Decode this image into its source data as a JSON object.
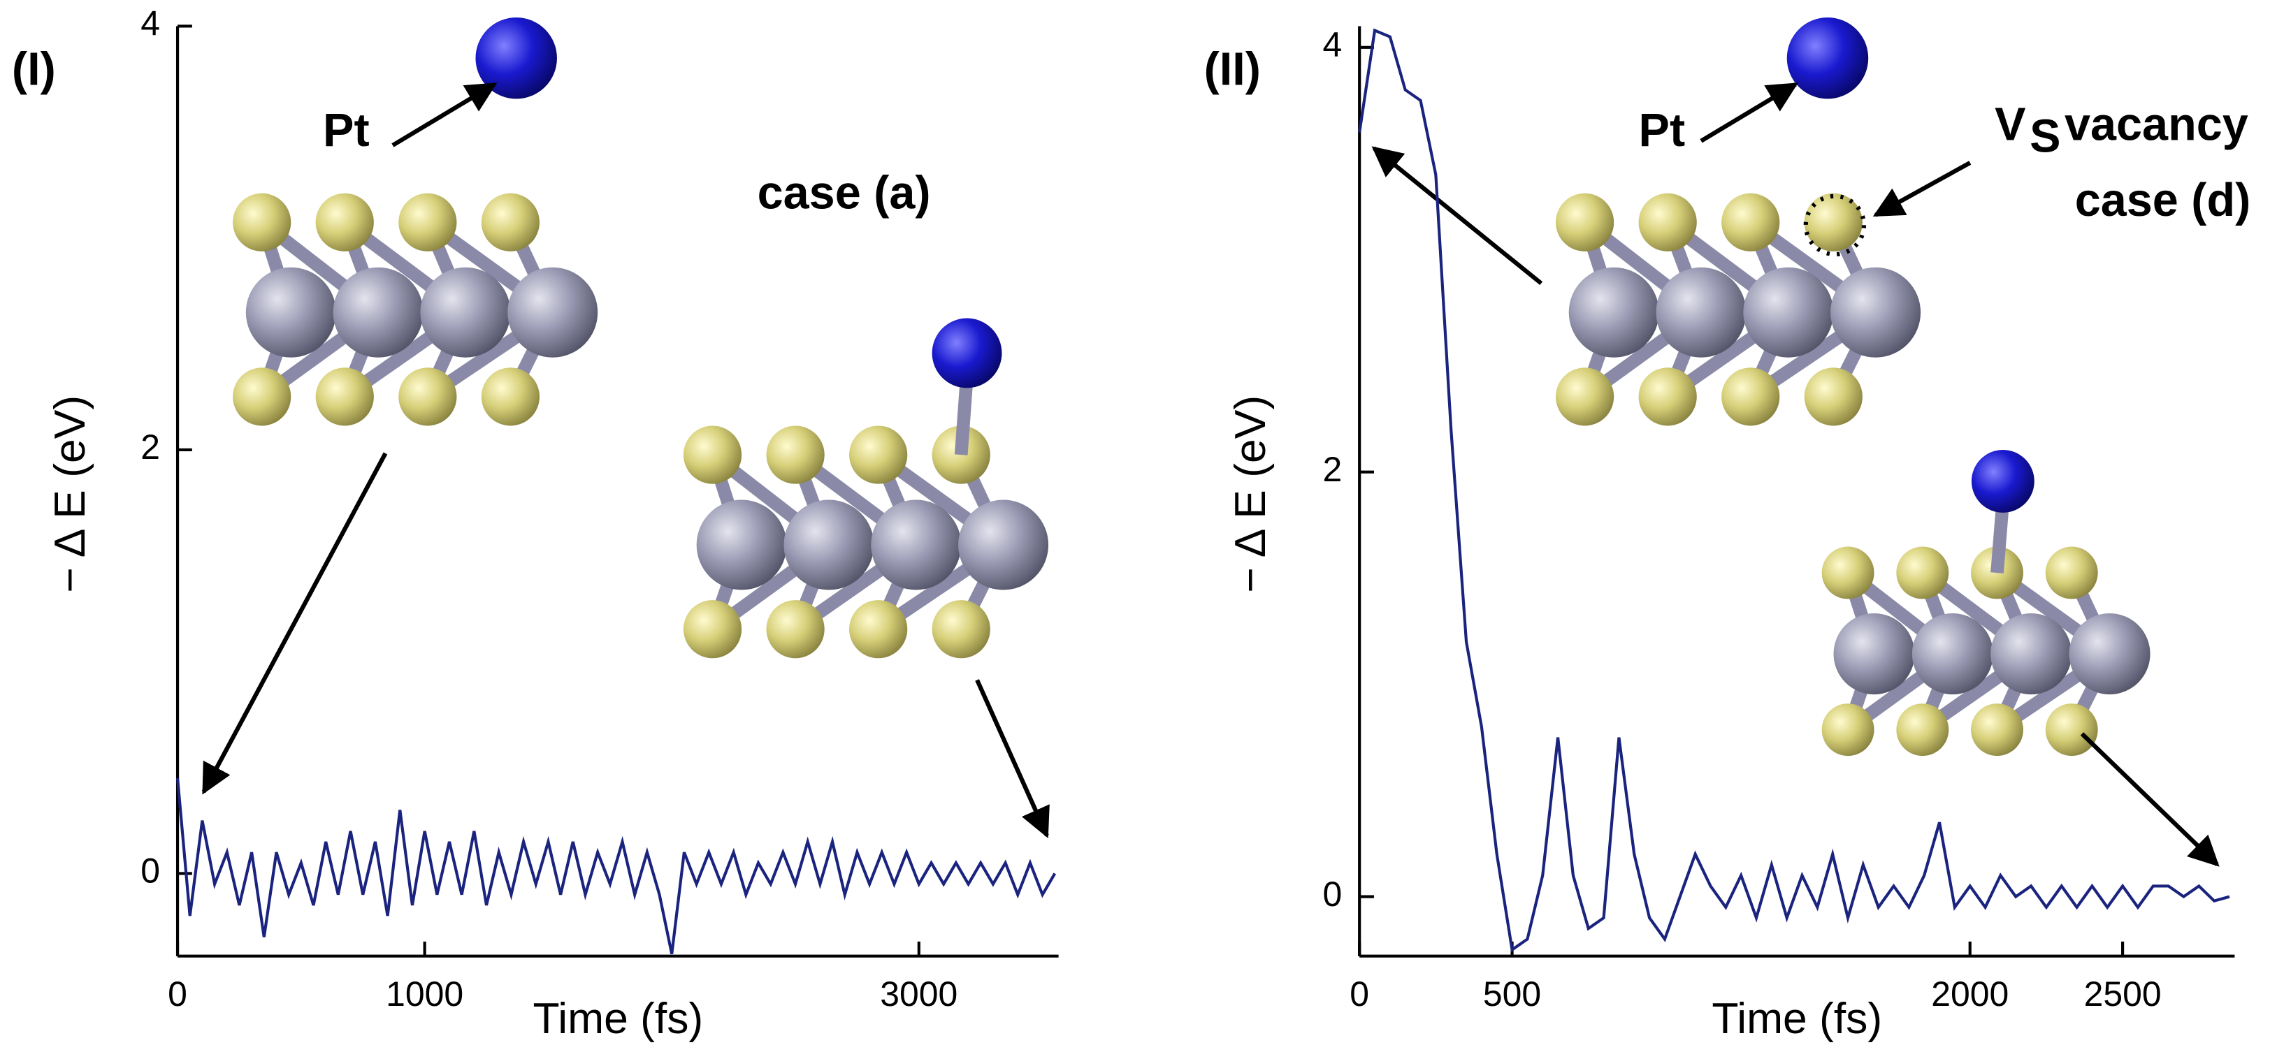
{
  "chart_data": [
    {
      "type": "line",
      "label": "(I)",
      "ylabel": "− Δ E (eV)",
      "xlabel": "Time (fs)",
      "annotations": [
        "Pt",
        "case (a)"
      ],
      "xlim": [
        0,
        3565
      ],
      "ylim": [
        -0.39,
        4
      ],
      "xticks": [
        0,
        1000,
        3000
      ],
      "yticks": [
        0,
        2,
        4
      ],
      "series": [
        {
          "color": "#1a237e",
          "x": [
            0,
            50,
            100,
            150,
            200,
            250,
            300,
            350,
            400,
            450,
            500,
            550,
            600,
            650,
            700,
            750,
            800,
            850,
            900,
            950,
            1000,
            1050,
            1100,
            1150,
            1200,
            1250,
            1300,
            1350,
            1400,
            1450,
            1500,
            1550,
            1600,
            1650,
            1700,
            1750,
            1800,
            1850,
            1900,
            1950,
            2000,
            2050,
            2100,
            2150,
            2200,
            2250,
            2300,
            2350,
            2400,
            2450,
            2500,
            2550,
            2600,
            2650,
            2700,
            2750,
            2800,
            2850,
            2900,
            2950,
            3000,
            3050,
            3100,
            3150,
            3200,
            3250,
            3300,
            3350,
            3400,
            3450,
            3500,
            3550
          ],
          "values": [
            0.45,
            -0.2,
            0.25,
            -0.05,
            0.1,
            -0.15,
            0.1,
            -0.3,
            0.1,
            -0.1,
            0.05,
            -0.15,
            0.15,
            -0.1,
            0.2,
            -0.1,
            0.15,
            -0.2,
            0.3,
            -0.15,
            0.2,
            -0.1,
            0.15,
            -0.1,
            0.2,
            -0.15,
            0.1,
            -0.1,
            0.15,
            -0.05,
            0.15,
            -0.1,
            0.15,
            -0.1,
            0.1,
            -0.05,
            0.15,
            -0.1,
            0.1,
            -0.1,
            -0.38,
            0.1,
            -0.05,
            0.1,
            -0.05,
            0.1,
            -0.1,
            0.05,
            -0.05,
            0.1,
            -0.05,
            0.15,
            -0.05,
            0.15,
            -0.1,
            0.1,
            -0.05,
            0.1,
            -0.05,
            0.1,
            -0.05,
            0.05,
            -0.05,
            0.05,
            -0.05,
            0.05,
            -0.05,
            0.05,
            -0.1,
            0.05,
            -0.1,
            0.0
          ]
        }
      ]
    },
    {
      "type": "line",
      "label": "(II)",
      "ylabel": "− Δ E (eV)",
      "xlabel": "Time (fs)",
      "annotations": [
        "Pt",
        "V",
        "S",
        "vacancy",
        "case (d)"
      ],
      "xlim": [
        0,
        2867
      ],
      "ylim": [
        -0.28,
        4.1
      ],
      "xticks": [
        0,
        500,
        2000,
        2500
      ],
      "yticks": [
        0,
        2,
        4
      ],
      "series": [
        {
          "color": "#1a237e",
          "x": [
            0,
            50,
            100,
            150,
            200,
            250,
            300,
            350,
            400,
            450,
            500,
            550,
            600,
            650,
            700,
            750,
            800,
            850,
            900,
            950,
            1000,
            1050,
            1100,
            1150,
            1200,
            1250,
            1300,
            1350,
            1400,
            1450,
            1500,
            1550,
            1600,
            1650,
            1700,
            1750,
            1800,
            1850,
            1900,
            1950,
            2000,
            2050,
            2100,
            2150,
            2200,
            2250,
            2300,
            2350,
            2400,
            2450,
            2500,
            2550,
            2600,
            2650,
            2700,
            2750,
            2800,
            2850
          ],
          "values": [
            3.6,
            4.08,
            4.05,
            3.8,
            3.75,
            3.4,
            2.2,
            1.2,
            0.8,
            0.2,
            -0.25,
            -0.2,
            0.1,
            0.75,
            0.1,
            -0.15,
            -0.1,
            0.75,
            0.2,
            -0.1,
            -0.2,
            0.0,
            0.2,
            0.05,
            -0.05,
            0.1,
            -0.1,
            0.15,
            -0.1,
            0.1,
            -0.05,
            0.2,
            -0.1,
            0.15,
            -0.05,
            0.05,
            -0.05,
            0.1,
            0.35,
            -0.05,
            0.05,
            -0.05,
            0.1,
            0.0,
            0.05,
            -0.05,
            0.05,
            -0.05,
            0.05,
            -0.05,
            0.05,
            -0.05,
            0.05,
            0.05,
            0.0,
            0.05,
            -0.02,
            0.0
          ]
        }
      ]
    }
  ]
}
